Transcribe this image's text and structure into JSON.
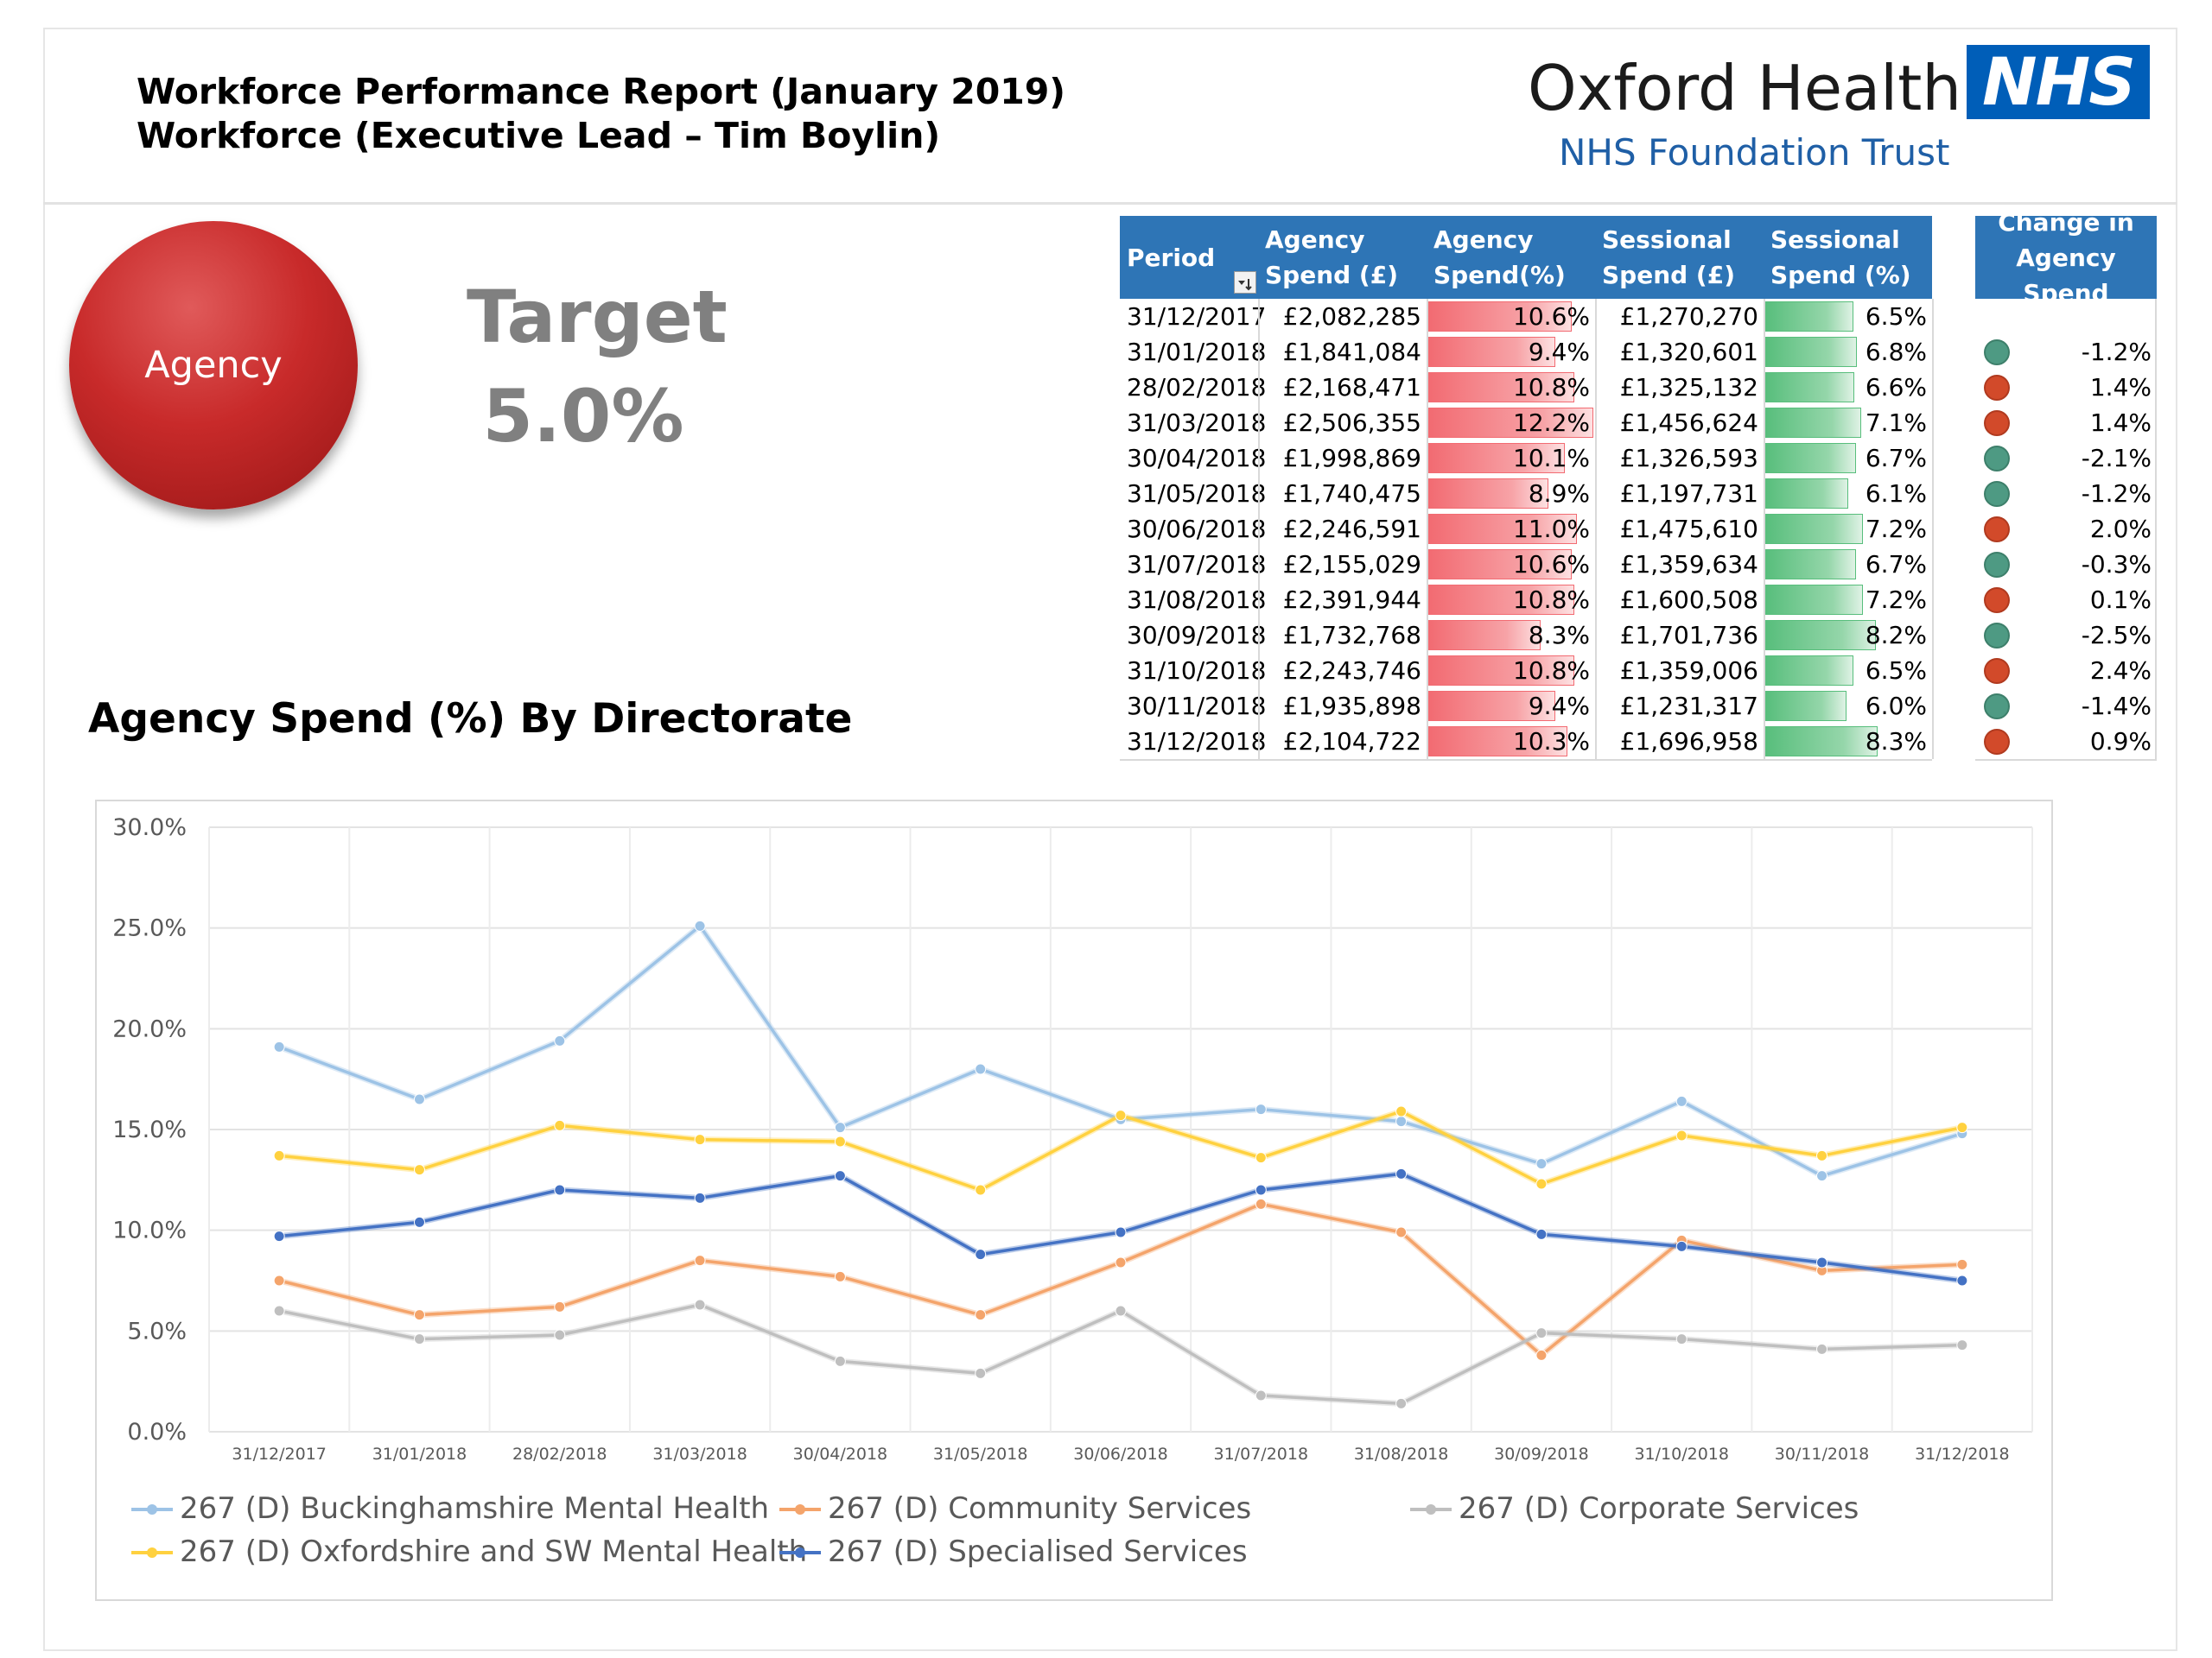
{
  "header": {
    "title_line1": "Workforce Performance Report (January 2019)",
    "title_line2": "Workforce (Executive Lead – Tim Boylin)",
    "org_name": "Oxford Health",
    "org_subtitle": "NHS Foundation Trust",
    "nhs_logo_text": "NHS"
  },
  "kpi": {
    "circle_label": "Agency",
    "circle_color": "#c62828",
    "target_label": "Target",
    "target_value": "5.0%"
  },
  "table": {
    "columns": [
      {
        "line1": "Period",
        "line2": ""
      },
      {
        "line1": "Agency",
        "line2": "Spend (£)"
      },
      {
        "line1": "Agency",
        "line2": "Spend(%)"
      },
      {
        "line1": "Sessional",
        "line2": "Spend (£)"
      },
      {
        "line1": "Sessional",
        "line2": "Spend (%)"
      },
      {
        "line1": "Change in",
        "line2": "Agency Spend"
      }
    ],
    "rows": [
      {
        "period": "31/12/2017",
        "agency_spend": "£2,082,285",
        "agency_pct": "10.6%",
        "agency_pct_val": 10.6,
        "sessional_spend": "£1,270,270",
        "sessional_pct": "6.5%",
        "sessional_pct_val": 6.5,
        "change": "",
        "status": ""
      },
      {
        "period": "31/01/2018",
        "agency_spend": "£1,841,084",
        "agency_pct": "9.4%",
        "agency_pct_val": 9.4,
        "sessional_spend": "£1,320,601",
        "sessional_pct": "6.8%",
        "sessional_pct_val": 6.8,
        "change": "-1.2%",
        "status": "green"
      },
      {
        "period": "28/02/2018",
        "agency_spend": "£2,168,471",
        "agency_pct": "10.8%",
        "agency_pct_val": 10.8,
        "sessional_spend": "£1,325,132",
        "sessional_pct": "6.6%",
        "sessional_pct_val": 6.6,
        "change": "1.4%",
        "status": "red"
      },
      {
        "period": "31/03/2018",
        "agency_spend": "£2,506,355",
        "agency_pct": "12.2%",
        "agency_pct_val": 12.2,
        "sessional_spend": "£1,456,624",
        "sessional_pct": "7.1%",
        "sessional_pct_val": 7.1,
        "change": "1.4%",
        "status": "red"
      },
      {
        "period": "30/04/2018",
        "agency_spend": "£1,998,869",
        "agency_pct": "10.1%",
        "agency_pct_val": 10.1,
        "sessional_spend": "£1,326,593",
        "sessional_pct": "6.7%",
        "sessional_pct_val": 6.7,
        "change": "-2.1%",
        "status": "green"
      },
      {
        "period": "31/05/2018",
        "agency_spend": "£1,740,475",
        "agency_pct": "8.9%",
        "agency_pct_val": 8.9,
        "sessional_spend": "£1,197,731",
        "sessional_pct": "6.1%",
        "sessional_pct_val": 6.1,
        "change": "-1.2%",
        "status": "green"
      },
      {
        "period": "30/06/2018",
        "agency_spend": "£2,246,591",
        "agency_pct": "11.0%",
        "agency_pct_val": 11.0,
        "sessional_spend": "£1,475,610",
        "sessional_pct": "7.2%",
        "sessional_pct_val": 7.2,
        "change": "2.0%",
        "status": "red"
      },
      {
        "period": "31/07/2018",
        "agency_spend": "£2,155,029",
        "agency_pct": "10.6%",
        "agency_pct_val": 10.6,
        "sessional_spend": "£1,359,634",
        "sessional_pct": "6.7%",
        "sessional_pct_val": 6.7,
        "change": "-0.3%",
        "status": "green"
      },
      {
        "period": "31/08/2018",
        "agency_spend": "£2,391,944",
        "agency_pct": "10.8%",
        "agency_pct_val": 10.8,
        "sessional_spend": "£1,600,508",
        "sessional_pct": "7.2%",
        "sessional_pct_val": 7.2,
        "change": "0.1%",
        "status": "red"
      },
      {
        "period": "30/09/2018",
        "agency_spend": "£1,732,768",
        "agency_pct": "8.3%",
        "agency_pct_val": 8.3,
        "sessional_spend": "£1,701,736",
        "sessional_pct": "8.2%",
        "sessional_pct_val": 8.2,
        "change": "-2.5%",
        "status": "green"
      },
      {
        "period": "31/10/2018",
        "agency_spend": "£2,243,746",
        "agency_pct": "10.8%",
        "agency_pct_val": 10.8,
        "sessional_spend": "£1,359,006",
        "sessional_pct": "6.5%",
        "sessional_pct_val": 6.5,
        "change": "2.4%",
        "status": "red"
      },
      {
        "period": "30/11/2018",
        "agency_spend": "£1,935,898",
        "agency_pct": "9.4%",
        "agency_pct_val": 9.4,
        "sessional_spend": "£1,231,317",
        "sessional_pct": "6.0%",
        "sessional_pct_val": 6.0,
        "change": "-1.4%",
        "status": "green"
      },
      {
        "period": "31/12/2018",
        "agency_spend": "£2,104,722",
        "agency_pct": "10.3%",
        "agency_pct_val": 10.3,
        "sessional_spend": "£1,696,958",
        "sessional_pct": "8.3%",
        "sessional_pct_val": 8.3,
        "change": "0.9%",
        "status": "red"
      }
    ],
    "bar_scale_max": 12.2,
    "status_colors": {
      "green": "#4e9a83",
      "red": "#d24a2a"
    },
    "header_color": "#2e75b6",
    "filter_icon": "filter-sort-icon"
  },
  "chart_section_title": "Agency Spend (%) By Directorate",
  "chart_data": {
    "type": "line",
    "title": "",
    "xlabel": "",
    "ylabel": "",
    "categories": [
      "31/12/2017",
      "31/01/2018",
      "28/02/2018",
      "31/03/2018",
      "30/04/2018",
      "31/05/2018",
      "30/06/2018",
      "31/07/2018",
      "31/08/2018",
      "30/09/2018",
      "31/10/2018",
      "30/11/2018",
      "31/12/2018"
    ],
    "y_ticks": [
      "0.0%",
      "5.0%",
      "10.0%",
      "15.0%",
      "20.0%",
      "25.0%",
      "30.0%"
    ],
    "ylim": [
      0,
      30
    ],
    "grid": true,
    "legend_position": "bottom-left",
    "series": [
      {
        "name": "267 (D) Buckinghamshire Mental Health",
        "color": "#9dc3e6",
        "values": [
          19.1,
          16.5,
          19.4,
          25.1,
          15.1,
          18.0,
          15.5,
          16.0,
          15.4,
          13.3,
          16.4,
          12.7,
          14.8
        ]
      },
      {
        "name": "267 (D) Community Services",
        "color": "#f4a46b",
        "values": [
          7.5,
          5.8,
          6.2,
          8.5,
          7.7,
          5.8,
          8.4,
          11.3,
          9.9,
          3.8,
          9.5,
          8.0,
          8.3
        ]
      },
      {
        "name": "267 (D) Corporate Services",
        "color": "#bfbfbf",
        "values": [
          6.0,
          4.6,
          4.8,
          6.3,
          3.5,
          2.9,
          6.0,
          1.8,
          1.4,
          4.9,
          4.6,
          4.1,
          4.3
        ]
      },
      {
        "name": "267 (D) Oxfordshire and SW Mental Health",
        "color": "#ffd13f",
        "values": [
          13.7,
          13.0,
          15.2,
          14.5,
          14.4,
          12.0,
          15.7,
          13.6,
          15.9,
          12.3,
          14.7,
          13.7,
          15.1
        ]
      },
      {
        "name": "267 (D) Specialised Services",
        "color": "#4472c4",
        "values": [
          9.7,
          10.4,
          12.0,
          11.6,
          12.7,
          8.8,
          9.9,
          12.0,
          12.8,
          9.8,
          9.2,
          8.4,
          7.5
        ]
      }
    ]
  }
}
